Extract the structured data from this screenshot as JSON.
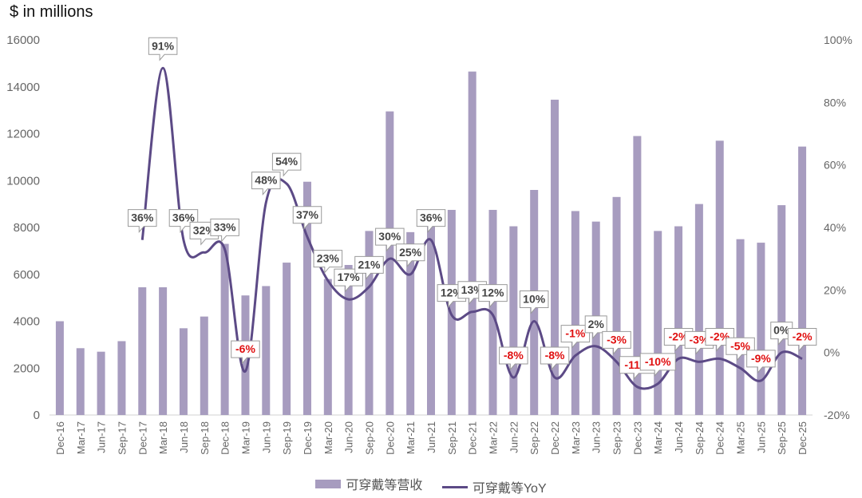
{
  "colors": {
    "bar": "#a79cbf",
    "line": "#5c4a86",
    "positive_label": "#444444",
    "negative_label": "#e01010",
    "callout_border": "#9a9a9a",
    "axis_text": "#666666"
  },
  "chart_data": {
    "type": "bar",
    "title": "",
    "ylabel": "$ in millions",
    "y2label": "",
    "ylim": [
      0,
      16000
    ],
    "y2lim": [
      -20,
      100
    ],
    "y_ticks": [
      "0",
      "2000",
      "4000",
      "6000",
      "8000",
      "10000",
      "12000",
      "14000",
      "16000"
    ],
    "y2_ticks": [
      "-20%",
      "0%",
      "20%",
      "40%",
      "60%",
      "80%",
      "100%"
    ],
    "categories": [
      "Dec-16",
      "Mar-17",
      "Jun-17",
      "Sep-17",
      "Dec-17",
      "Mar-18",
      "Jun-18",
      "Sep-18",
      "Dec-18",
      "Mar-19",
      "Jun-19",
      "Sep-19",
      "Dec-19",
      "Mar-20",
      "Jun-20",
      "Sep-20",
      "Dec-20",
      "Mar-21",
      "Jun-21",
      "Sep-21",
      "Dec-21",
      "Mar-22",
      "Jun-22",
      "Sep-22",
      "Dec-22",
      "Mar-23",
      "Jun-23",
      "Sep-23",
      "Dec-23",
      "Mar-24",
      "Jun-24",
      "Sep-24",
      "Dec-24",
      "Mar-25",
      "Jun-25",
      "Sep-25",
      "Dec-25"
    ],
    "series": [
      {
        "name": "可穿戴等营收",
        "type": "bar",
        "axis": "left",
        "values": [
          4000,
          2850,
          2700,
          3150,
          5450,
          5450,
          3700,
          4200,
          7300,
          5100,
          5500,
          6500,
          9950,
          5800,
          6400,
          7850,
          12950,
          7800,
          8750,
          8750,
          14650,
          8750,
          8050,
          9600,
          13450,
          8700,
          8250,
          9300,
          11900,
          7850,
          8050,
          9000,
          11700,
          7500,
          7350,
          8950,
          11450
        ]
      },
      {
        "name": "可穿戴等YoY",
        "type": "line",
        "axis": "right",
        "values": [
          null,
          null,
          null,
          null,
          36,
          91,
          36,
          32,
          33,
          -6,
          48,
          54,
          37,
          23,
          17,
          21,
          30,
          25,
          36,
          12,
          13,
          12,
          -8,
          10,
          -8,
          -1,
          2,
          -3,
          -11,
          -10,
          -2,
          -3,
          -2,
          -5,
          -9,
          0,
          -2
        ],
        "labels": [
          "",
          "",
          "",
          "",
          "36%",
          "91%",
          "36%",
          "32%",
          "33%",
          "-6%",
          "48%",
          "54%",
          "37%",
          "23%",
          "17%",
          "21%",
          "30%",
          "25%",
          "36%",
          "12%",
          "13%",
          "12%",
          "-8%",
          "10%",
          "-8%",
          "-1%",
          "2%",
          "-3%",
          "-11%",
          "-10%",
          "-2%",
          "-3%",
          "-2%",
          "-5%",
          "-9%",
          "0%",
          "-2%"
        ]
      }
    ],
    "legend": [
      "可穿戴等营收",
      "可穿戴等YoY"
    ],
    "legend_position": "bottom",
    "grid": false
  }
}
